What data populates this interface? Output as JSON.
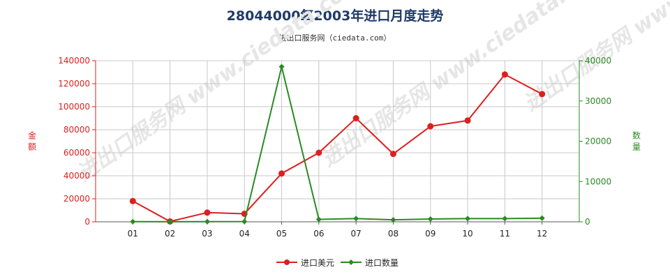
{
  "title": "28044000氧2003年进口月度走势",
  "subtitle": "进出口服务网（ciedata.com）",
  "watermark": "进出口服务网 www.ciedata.com",
  "chart_data": {
    "type": "line",
    "categories": [
      "01",
      "02",
      "03",
      "04",
      "05",
      "06",
      "07",
      "08",
      "09",
      "10",
      "11",
      "12"
    ],
    "y_left": {
      "label": "金额",
      "min": 0,
      "max": 140000,
      "ticks": [
        "0",
        "20000",
        "40000",
        "60000",
        "80000",
        "100000",
        "120000",
        "140000"
      ]
    },
    "y_right": {
      "label": "数量",
      "min": 0,
      "max": 40000,
      "ticks": [
        "0",
        "10000",
        "20000",
        "30000",
        "40000"
      ]
    },
    "grid": true,
    "legend_position": "bottom",
    "series": [
      {
        "name": "进口美元",
        "axis": "left",
        "color": "#dd1f1f",
        "values": [
          18000,
          300,
          8000,
          7000,
          42000,
          60000,
          90000,
          59000,
          83000,
          88000,
          128000,
          111000
        ]
      },
      {
        "name": "进口数量",
        "axis": "right",
        "color": "#2a8a22",
        "values": [
          50,
          30,
          40,
          60,
          38500,
          600,
          800,
          500,
          700,
          800,
          800,
          900
        ]
      }
    ]
  }
}
